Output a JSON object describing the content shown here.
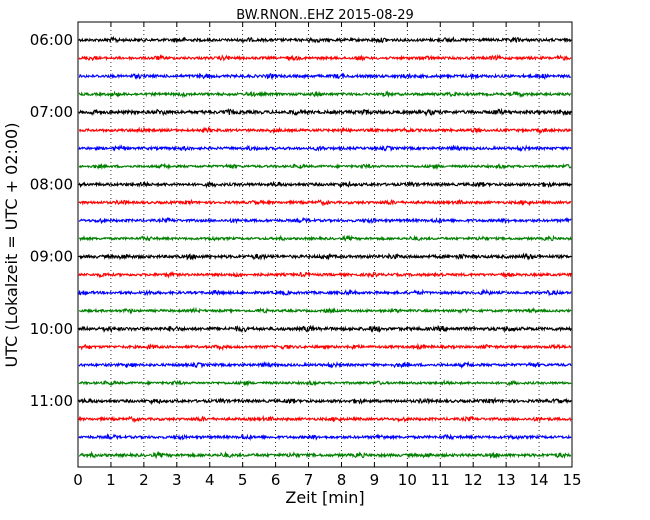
{
  "chart_data": {
    "type": "line",
    "title": "BW.RNON..EHZ 2015-08-29",
    "xlabel": "Zeit  [min]",
    "ylabel": "UTC (Lokalzeit = UTC + 02:00)",
    "xlim": [
      0,
      15
    ],
    "x_ticks": [
      0,
      1,
      2,
      3,
      4,
      5,
      6,
      7,
      8,
      9,
      10,
      11,
      12,
      13,
      14,
      15
    ],
    "x_tick_labels": [
      "0",
      "1",
      "2",
      "3",
      "4",
      "5",
      "6",
      "7",
      "8",
      "9",
      "10",
      "11",
      "12",
      "13",
      "14",
      "15"
    ],
    "y_tick_labels": [
      "06:00",
      "07:00",
      "08:00",
      "09:00",
      "10:00",
      "11:00"
    ],
    "y_tick_rows": [
      0,
      4,
      8,
      12,
      16,
      20
    ],
    "vertical_grid": true,
    "grid_style": "dotted",
    "trace_colors": [
      "#000000",
      "#ff0000",
      "#0000ff",
      "#008000"
    ],
    "traces": [
      {
        "start": "06:00",
        "amplitude": 0.6
      },
      {
        "start": "06:15",
        "amplitude": 0.55
      },
      {
        "start": "06:30",
        "amplitude": 0.6
      },
      {
        "start": "06:45",
        "amplitude": 0.55
      },
      {
        "start": "07:00",
        "amplitude": 0.7
      },
      {
        "start": "07:15",
        "amplitude": 0.55
      },
      {
        "start": "07:30",
        "amplitude": 0.55
      },
      {
        "start": "07:45",
        "amplitude": 0.5
      },
      {
        "start": "08:00",
        "amplitude": 0.6
      },
      {
        "start": "08:15",
        "amplitude": 0.55
      },
      {
        "start": "08:30",
        "amplitude": 0.55
      },
      {
        "start": "08:45",
        "amplitude": 0.5
      },
      {
        "start": "09:00",
        "amplitude": 0.65
      },
      {
        "start": "09:15",
        "amplitude": 0.55
      },
      {
        "start": "09:30",
        "amplitude": 0.55
      },
      {
        "start": "09:45",
        "amplitude": 0.5
      },
      {
        "start": "10:00",
        "amplitude": 0.7
      },
      {
        "start": "10:15",
        "amplitude": 0.55
      },
      {
        "start": "10:30",
        "amplitude": 0.55
      },
      {
        "start": "10:45",
        "amplitude": 0.5
      },
      {
        "start": "11:00",
        "amplitude": 0.6
      },
      {
        "start": "11:15",
        "amplitude": 0.55
      },
      {
        "start": "11:30",
        "amplitude": 0.55
      },
      {
        "start": "11:45",
        "amplitude": 0.6
      }
    ]
  }
}
